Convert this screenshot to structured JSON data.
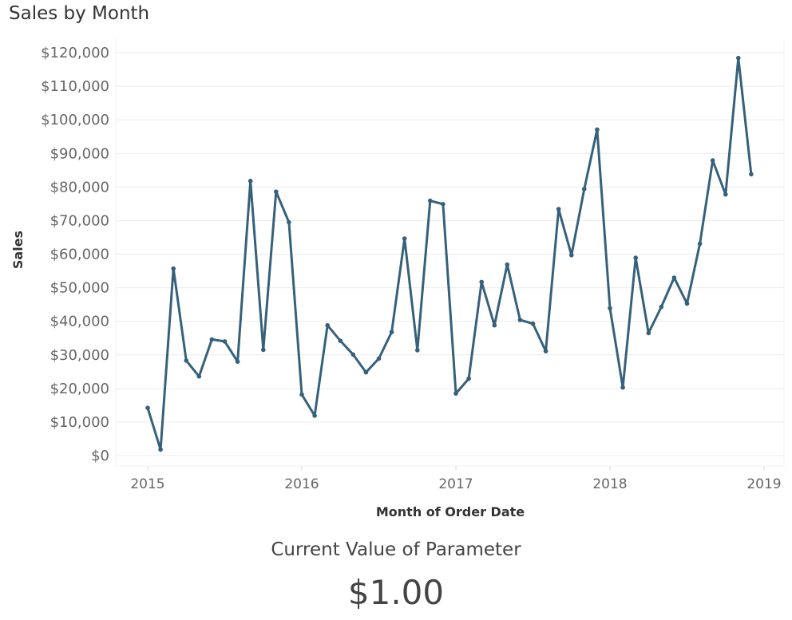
{
  "chart_data": {
    "type": "line",
    "title": "Sales by Month",
    "xlabel": "Month of Order Date",
    "ylabel": "Sales",
    "ylim": [
      0,
      120000
    ],
    "y_ticks": [
      "$0",
      "$10,000",
      "$20,000",
      "$30,000",
      "$40,000",
      "$50,000",
      "$60,000",
      "$70,000",
      "$80,000",
      "$90,000",
      "$100,000",
      "$110,000",
      "$120,000"
    ],
    "x_ticks": [
      "2015",
      "2016",
      "2017",
      "2018",
      "2019"
    ],
    "grid": true,
    "color": "#36617a",
    "x": [
      "2015-01",
      "2015-02",
      "2015-03",
      "2015-04",
      "2015-05",
      "2015-06",
      "2015-07",
      "2015-08",
      "2015-09",
      "2015-10",
      "2015-11",
      "2015-12",
      "2016-01",
      "2016-02",
      "2016-03",
      "2016-04",
      "2016-05",
      "2016-06",
      "2016-07",
      "2016-08",
      "2016-09",
      "2016-10",
      "2016-11",
      "2016-12",
      "2017-01",
      "2017-02",
      "2017-03",
      "2017-04",
      "2017-05",
      "2017-06",
      "2017-07",
      "2017-08",
      "2017-09",
      "2017-10",
      "2017-11",
      "2017-12",
      "2018-01",
      "2018-02",
      "2018-03",
      "2018-04",
      "2018-05",
      "2018-06",
      "2018-07",
      "2018-08",
      "2018-09",
      "2018-10",
      "2018-11",
      "2018-12"
    ],
    "series": [
      {
        "values": [
          14200,
          1800,
          55700,
          28300,
          23600,
          34600,
          34000,
          28000,
          81800,
          31500,
          78600,
          69500,
          18200,
          11900,
          38800,
          34200,
          30100,
          24800,
          28900,
          36800,
          64600,
          31400,
          75900,
          74900,
          18500,
          22900,
          51700,
          38800,
          56900,
          40400,
          39300,
          31100,
          73400,
          59700,
          79400,
          97100,
          43900,
          20300,
          58900,
          36500,
          44300,
          53000,
          45300,
          63100,
          87900,
          77800,
          118400,
          83800
        ]
      }
    ]
  },
  "parameter": {
    "label": "Current Value of Parameter",
    "value": "$1.00"
  }
}
